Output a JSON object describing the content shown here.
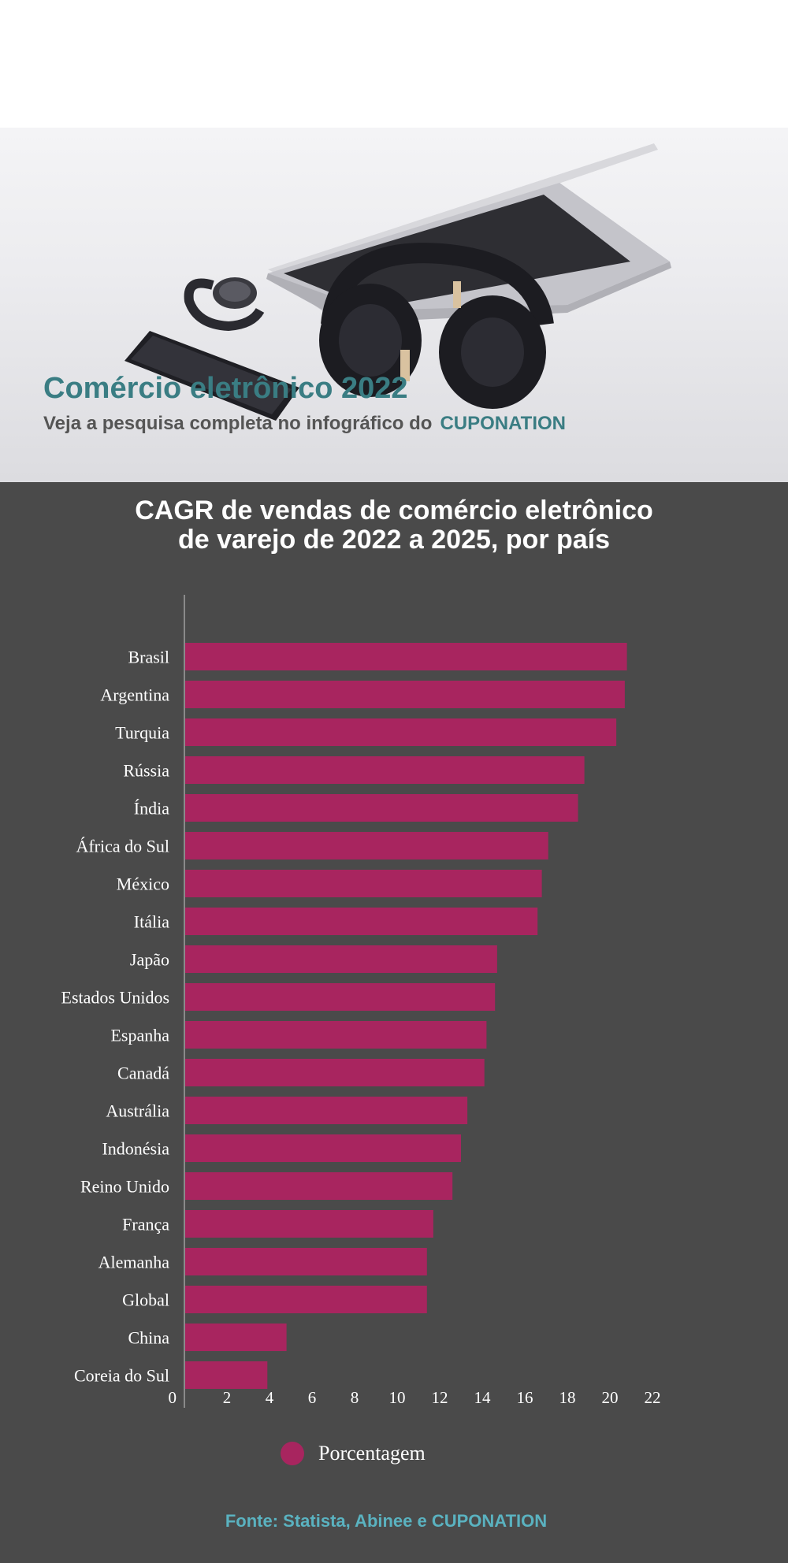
{
  "hero": {
    "title": "Comércio eletrônico 2022",
    "subtitle": "Veja a pesquisa completa no infográfico do",
    "brand": "CUPONATION"
  },
  "chart_data": {
    "type": "bar",
    "orientation": "horizontal",
    "title_line1": "CAGR de vendas de comércio eletrônico",
    "title_line2": "de varejo de 2022 a 2025, por país",
    "categories": [
      "Brasil",
      "Argentina",
      "Turquia",
      "Rússia",
      "Índia",
      "África do Sul",
      "México",
      "Itália",
      "Japão",
      "Estados Unidos",
      "Espanha",
      "Canadá",
      "Austrália",
      "Indonésia",
      "Reino Unido",
      "França",
      "Alemanha",
      "Global",
      "China",
      "Coreia do Sul"
    ],
    "series": [
      {
        "name": "Porcentagem",
        "color": "#a8255f",
        "values": [
          20.8,
          20.7,
          20.3,
          18.8,
          18.5,
          17.1,
          16.8,
          16.6,
          14.7,
          14.6,
          14.2,
          14.1,
          13.3,
          13.0,
          12.6,
          11.7,
          11.4,
          11.4,
          4.8,
          3.9
        ]
      }
    ],
    "xlim": [
      0,
      22
    ],
    "xticks": [
      0,
      2,
      4,
      6,
      8,
      10,
      12,
      14,
      16,
      18,
      20,
      22
    ],
    "legend_position": "bottom",
    "grid": false
  },
  "source": "Fonte: Statista, Abinee e CUPONATION"
}
